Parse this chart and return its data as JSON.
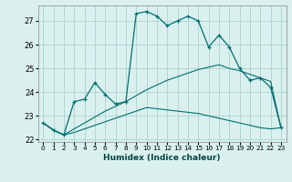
{
  "xlabel": "Humidex (Indice chaleur)",
  "background_color": "#daf0ee",
  "grid_color": "#aad4cf",
  "line_color": "#007070",
  "xlim": [
    -0.5,
    23.5
  ],
  "ylim": [
    21.9,
    27.65
  ],
  "yticks": [
    22,
    23,
    24,
    25,
    26,
    27
  ],
  "xticks": [
    0,
    1,
    2,
    3,
    4,
    5,
    6,
    7,
    8,
    9,
    10,
    11,
    12,
    13,
    14,
    15,
    16,
    17,
    18,
    19,
    20,
    21,
    22,
    23
  ],
  "xtick_labels": [
    "0",
    "1",
    "2",
    "3",
    "4",
    "5",
    "6",
    "7",
    "8",
    "9",
    "10",
    "11",
    "12",
    "13",
    "14",
    "15",
    "16",
    "17",
    "18",
    "19",
    "20",
    "21",
    "22",
    "23"
  ],
  "series1": [
    22.7,
    22.4,
    22.2,
    23.6,
    23.7,
    24.4,
    23.9,
    23.5,
    23.6,
    27.3,
    27.4,
    27.2,
    26.8,
    27.0,
    27.2,
    27.0,
    25.9,
    26.4,
    25.9,
    25.0,
    24.5,
    24.6,
    24.2,
    22.5
  ],
  "series2": [
    22.7,
    22.4,
    22.2,
    22.3,
    22.45,
    22.6,
    22.75,
    22.9,
    23.05,
    23.2,
    23.35,
    23.3,
    23.25,
    23.2,
    23.15,
    23.1,
    23.0,
    22.9,
    22.8,
    22.7,
    22.6,
    22.5,
    22.45,
    22.5
  ],
  "series3": [
    22.7,
    22.4,
    22.2,
    22.45,
    22.7,
    22.95,
    23.2,
    23.4,
    23.6,
    23.85,
    24.1,
    24.3,
    24.5,
    24.65,
    24.8,
    24.95,
    25.05,
    25.15,
    25.0,
    24.9,
    24.75,
    24.6,
    24.45,
    22.5
  ]
}
